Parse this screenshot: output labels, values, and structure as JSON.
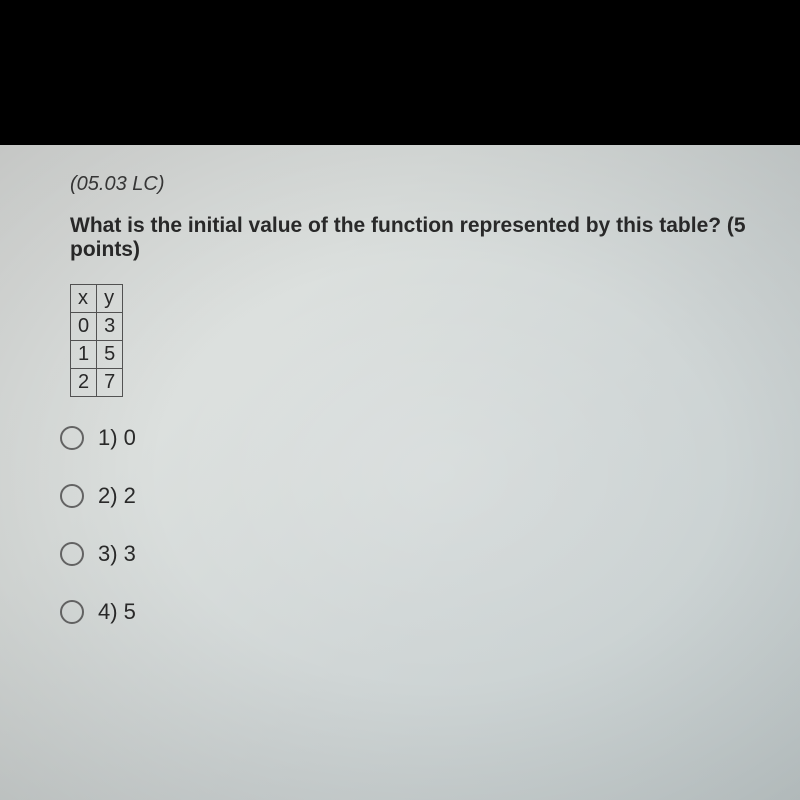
{
  "lesson_code": "(05.03 LC)",
  "question_text": "What is the initial value of the function represented by this table? (5 points)",
  "table": {
    "headers": [
      "x",
      "y"
    ],
    "rows": [
      [
        "0",
        "3"
      ],
      [
        "1",
        "5"
      ],
      [
        "2",
        "7"
      ]
    ]
  },
  "options": [
    {
      "label": "1) 0"
    },
    {
      "label": "2) 2"
    },
    {
      "label": "3) 3"
    },
    {
      "label": "4) 5"
    }
  ],
  "colors": {
    "background_top": "#000000",
    "screen_tint": "#dce0de",
    "text": "#2a2a2a",
    "border": "#555555"
  }
}
